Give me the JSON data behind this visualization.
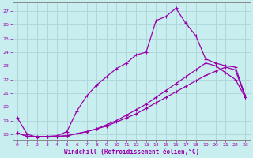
{
  "xlabel": "Windchill (Refroidissement éolien,°C)",
  "bg_color": "#c8eef0",
  "line_color": "#9900aa",
  "grid_color": "#b0d8da",
  "xlim": [
    -0.5,
    23.5
  ],
  "ylim": [
    17.6,
    27.6
  ],
  "yticks": [
    18,
    19,
    20,
    21,
    22,
    23,
    24,
    25,
    26,
    27
  ],
  "xticks": [
    0,
    1,
    2,
    3,
    4,
    5,
    6,
    7,
    8,
    9,
    10,
    11,
    12,
    13,
    14,
    15,
    16,
    17,
    18,
    19,
    20,
    21,
    22,
    23
  ],
  "curve1_x": [
    0,
    1,
    2,
    3,
    4,
    5,
    6,
    7,
    8,
    9,
    10,
    11,
    12,
    13,
    14,
    15,
    16,
    17,
    18,
    19,
    20,
    21,
    22,
    23
  ],
  "curve1_y": [
    19.2,
    18.0,
    17.8,
    17.85,
    17.9,
    18.2,
    19.7,
    20.8,
    21.6,
    22.2,
    22.8,
    23.2,
    23.8,
    24.0,
    26.3,
    26.6,
    27.2,
    26.1,
    25.2,
    23.5,
    23.2,
    23.0,
    22.9,
    20.8
  ],
  "curve2_x": [
    0,
    1,
    2,
    3,
    4,
    5,
    6,
    7,
    8,
    9,
    10,
    11,
    12,
    13,
    14,
    15,
    16,
    17,
    18,
    19,
    20,
    21,
    22,
    23
  ],
  "curve2_y": [
    18.1,
    17.85,
    17.85,
    17.85,
    17.85,
    17.9,
    18.05,
    18.2,
    18.4,
    18.7,
    19.0,
    19.4,
    19.8,
    20.2,
    20.7,
    21.2,
    21.7,
    22.2,
    22.7,
    23.2,
    23.0,
    22.5,
    22.0,
    20.7
  ],
  "curve3_x": [
    0,
    1,
    2,
    3,
    4,
    5,
    6,
    7,
    8,
    9,
    10,
    11,
    12,
    13,
    14,
    15,
    16,
    17,
    18,
    19,
    20,
    21,
    22,
    23
  ],
  "curve3_y": [
    18.1,
    17.85,
    17.85,
    17.85,
    17.85,
    17.9,
    18.05,
    18.2,
    18.4,
    18.6,
    18.9,
    19.2,
    19.5,
    19.9,
    20.3,
    20.7,
    21.1,
    21.5,
    21.9,
    22.3,
    22.6,
    22.9,
    22.7,
    20.7
  ]
}
